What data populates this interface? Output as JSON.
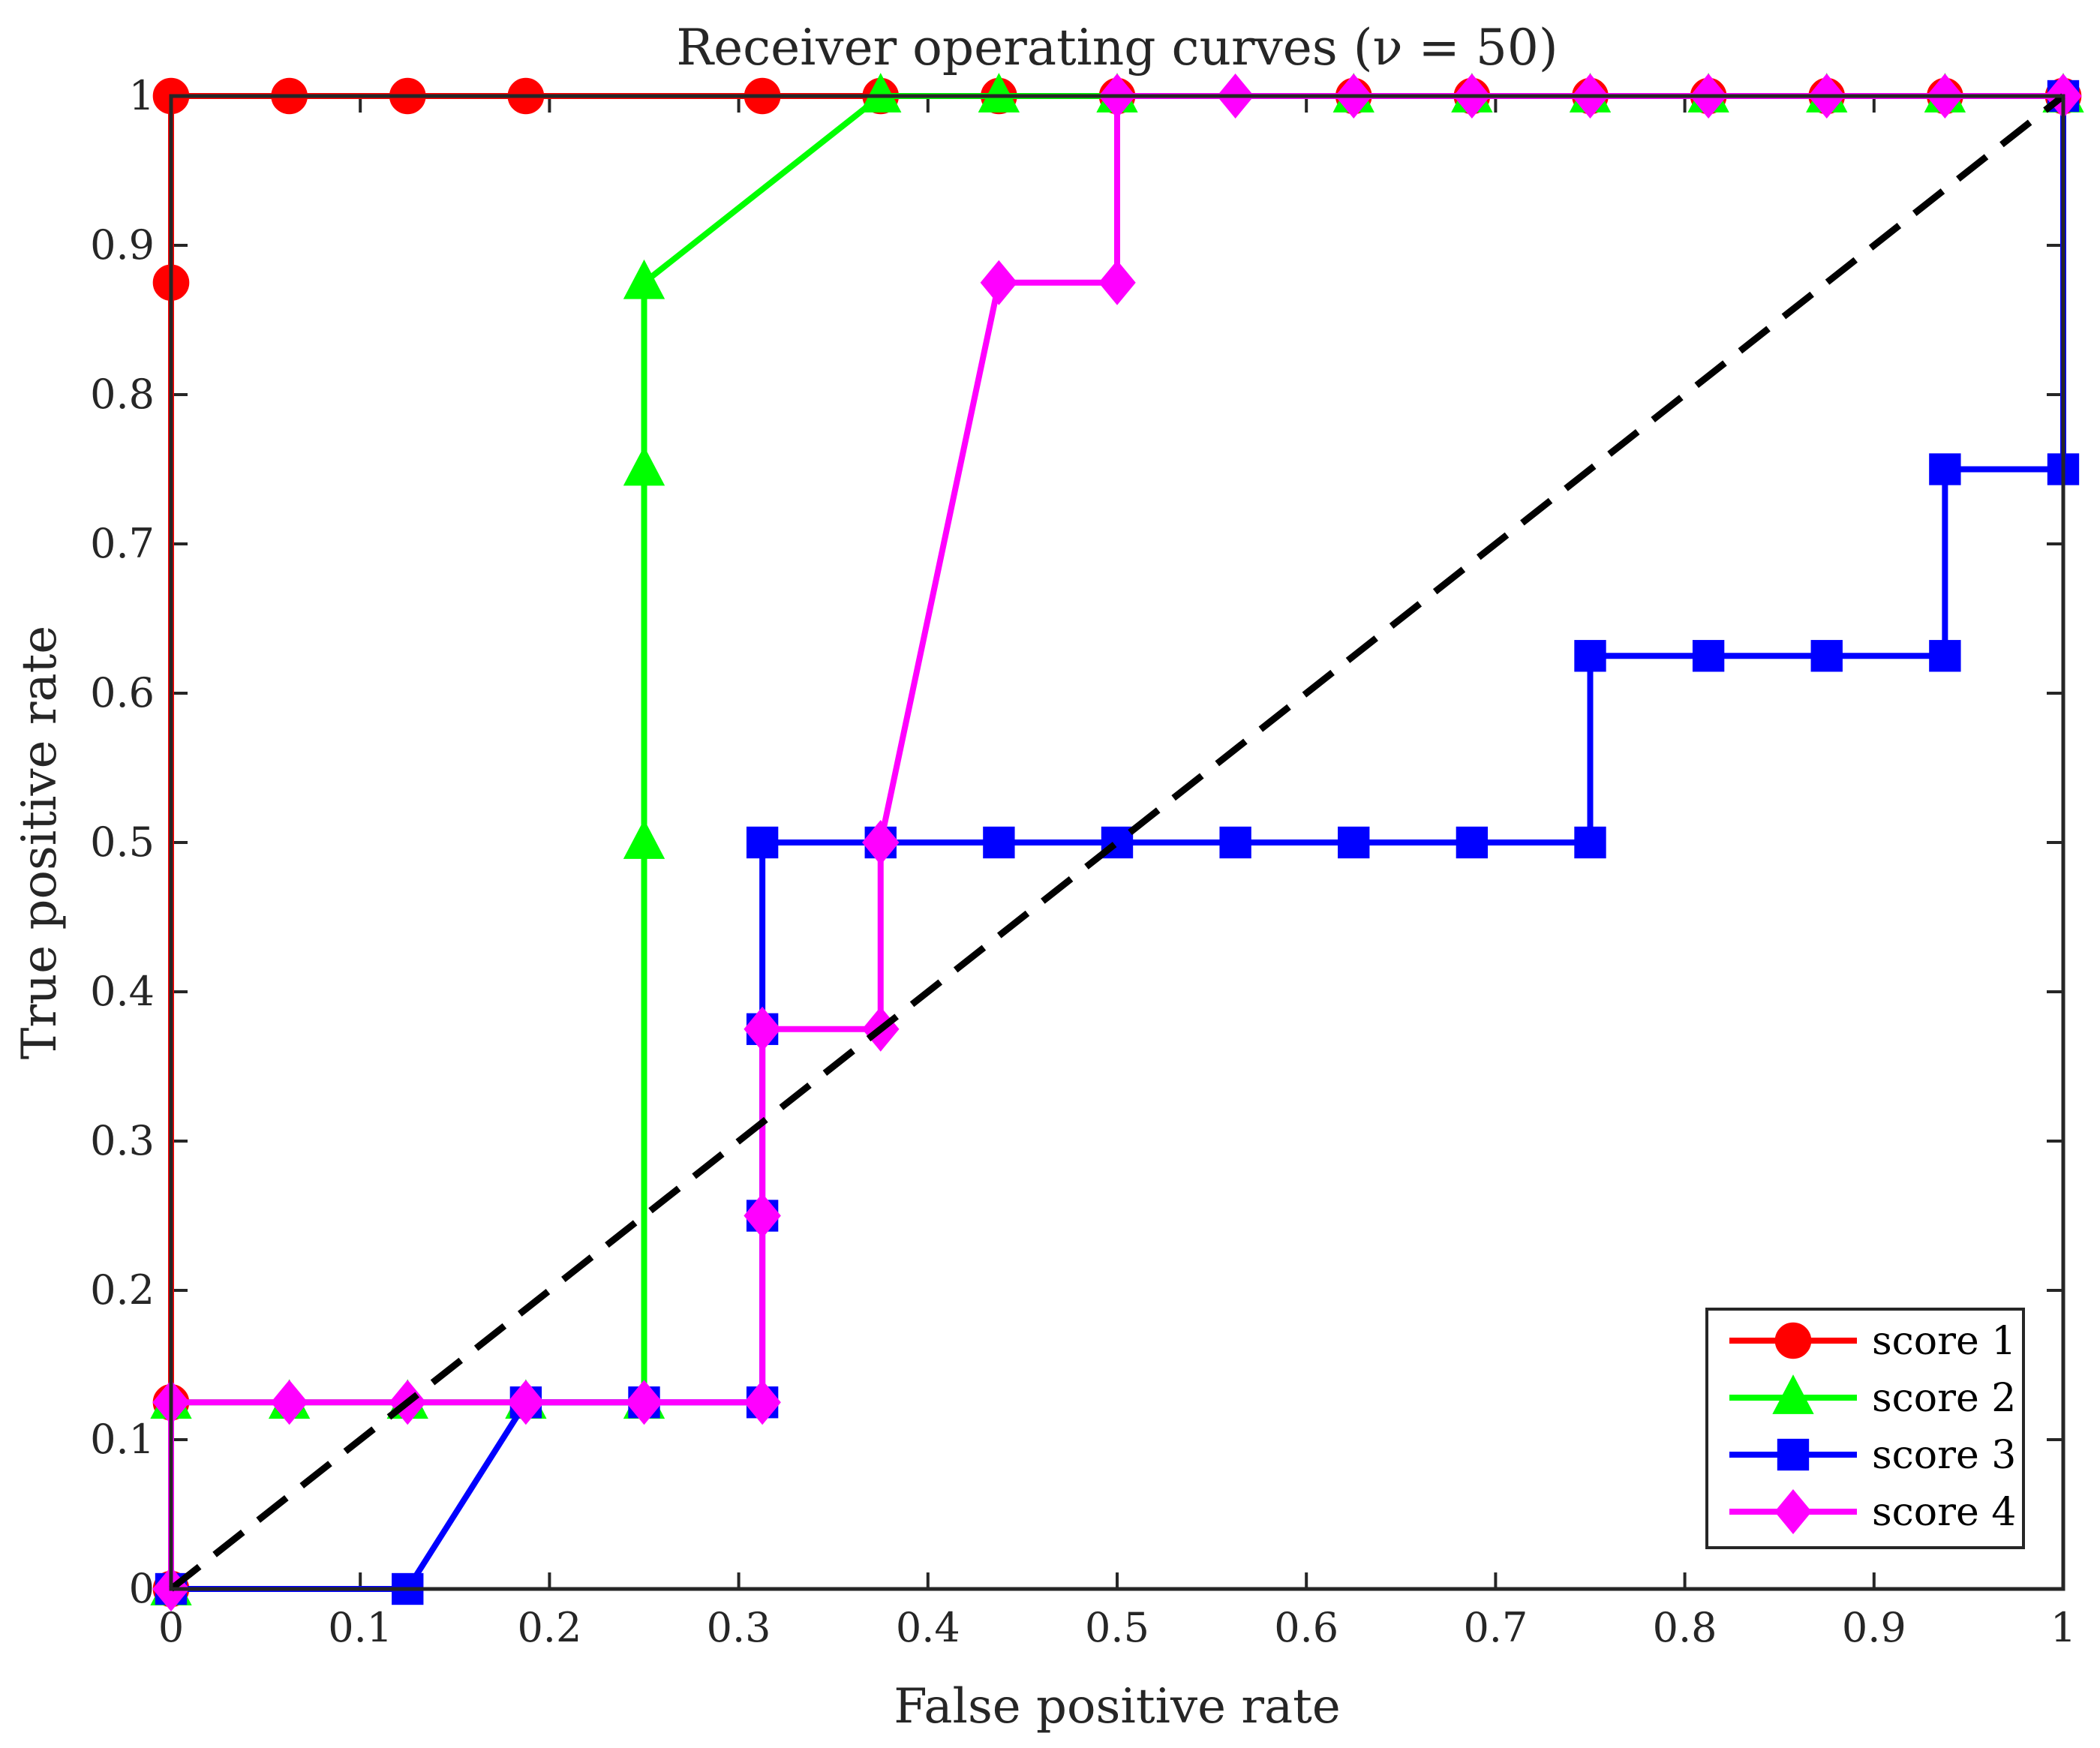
{
  "chart_data": {
    "type": "line",
    "title": "Receiver operating curves (ν = 50)",
    "xlabel": "False positive rate",
    "ylabel": "True positive rate",
    "xlim": [
      0,
      1
    ],
    "ylim": [
      0,
      1
    ],
    "xticks": [
      "0",
      "0.1",
      "0.2",
      "0.3",
      "0.4",
      "0.5",
      "0.6",
      "0.7",
      "0.8",
      "0.9",
      "1"
    ],
    "yticks": [
      "0",
      "0.1",
      "0.2",
      "0.3",
      "0.4",
      "0.5",
      "0.6",
      "0.7",
      "0.8",
      "0.9",
      "1"
    ],
    "grid": false,
    "legend_position": "bottom-right",
    "series": [
      {
        "name": "score 1",
        "color": "#ff0000",
        "marker": "circle",
        "x": [
          0,
          0,
          0,
          0,
          0.0625,
          0.125,
          0.1875,
          0.3125,
          0.375,
          0.4375,
          0.5,
          0.625,
          0.6875,
          0.75,
          0.8125,
          0.875,
          0.9375,
          1
        ],
        "y": [
          0,
          0.125,
          0.875,
          1,
          1,
          1,
          1,
          1,
          1,
          1,
          1,
          1,
          1,
          1,
          1,
          1,
          1,
          1
        ]
      },
      {
        "name": "score 2",
        "color": "#00ff00",
        "marker": "triangle",
        "x": [
          0,
          0,
          0.0625,
          0.125,
          0.1875,
          0.25,
          0.25,
          0.25,
          0.25,
          0.375,
          0.4375,
          0.5,
          0.625,
          0.6875,
          0.75,
          0.8125,
          0.875,
          0.9375,
          1
        ],
        "y": [
          0,
          0.125,
          0.125,
          0.125,
          0.125,
          0.125,
          0.5,
          0.75,
          0.875,
          1,
          1,
          1,
          1,
          1,
          1,
          1,
          1,
          1,
          1
        ]
      },
      {
        "name": "score 3",
        "color": "#0000ff",
        "marker": "square",
        "x": [
          0,
          0.125,
          0.1875,
          0.25,
          0.3125,
          0.3125,
          0.3125,
          0.3125,
          0.375,
          0.4375,
          0.5,
          0.5625,
          0.625,
          0.6875,
          0.75,
          0.75,
          0.8125,
          0.875,
          0.9375,
          0.9375,
          1,
          1
        ],
        "y": [
          0,
          0,
          0.125,
          0.125,
          0.125,
          0.25,
          0.375,
          0.5,
          0.5,
          0.5,
          0.5,
          0.5,
          0.5,
          0.5,
          0.5,
          0.625,
          0.625,
          0.625,
          0.625,
          0.75,
          0.75,
          1
        ]
      },
      {
        "name": "score 4",
        "color": "#ff00ff",
        "marker": "diamond",
        "x": [
          0,
          0,
          0.0625,
          0.125,
          0.1875,
          0.25,
          0.3125,
          0.3125,
          0.3125,
          0.375,
          0.375,
          0.4375,
          0.5,
          0.5,
          0.5625,
          0.625,
          0.6875,
          0.75,
          0.8125,
          0.875,
          0.9375,
          1
        ],
        "y": [
          0,
          0.125,
          0.125,
          0.125,
          0.125,
          0.125,
          0.125,
          0.25,
          0.375,
          0.375,
          0.5,
          0.875,
          0.875,
          1,
          1,
          1,
          1,
          1,
          1,
          1,
          1,
          1
        ]
      }
    ],
    "reference_line": {
      "style": "dashed",
      "color": "#000000",
      "x": [
        0,
        1
      ],
      "y": [
        0,
        1
      ]
    }
  }
}
